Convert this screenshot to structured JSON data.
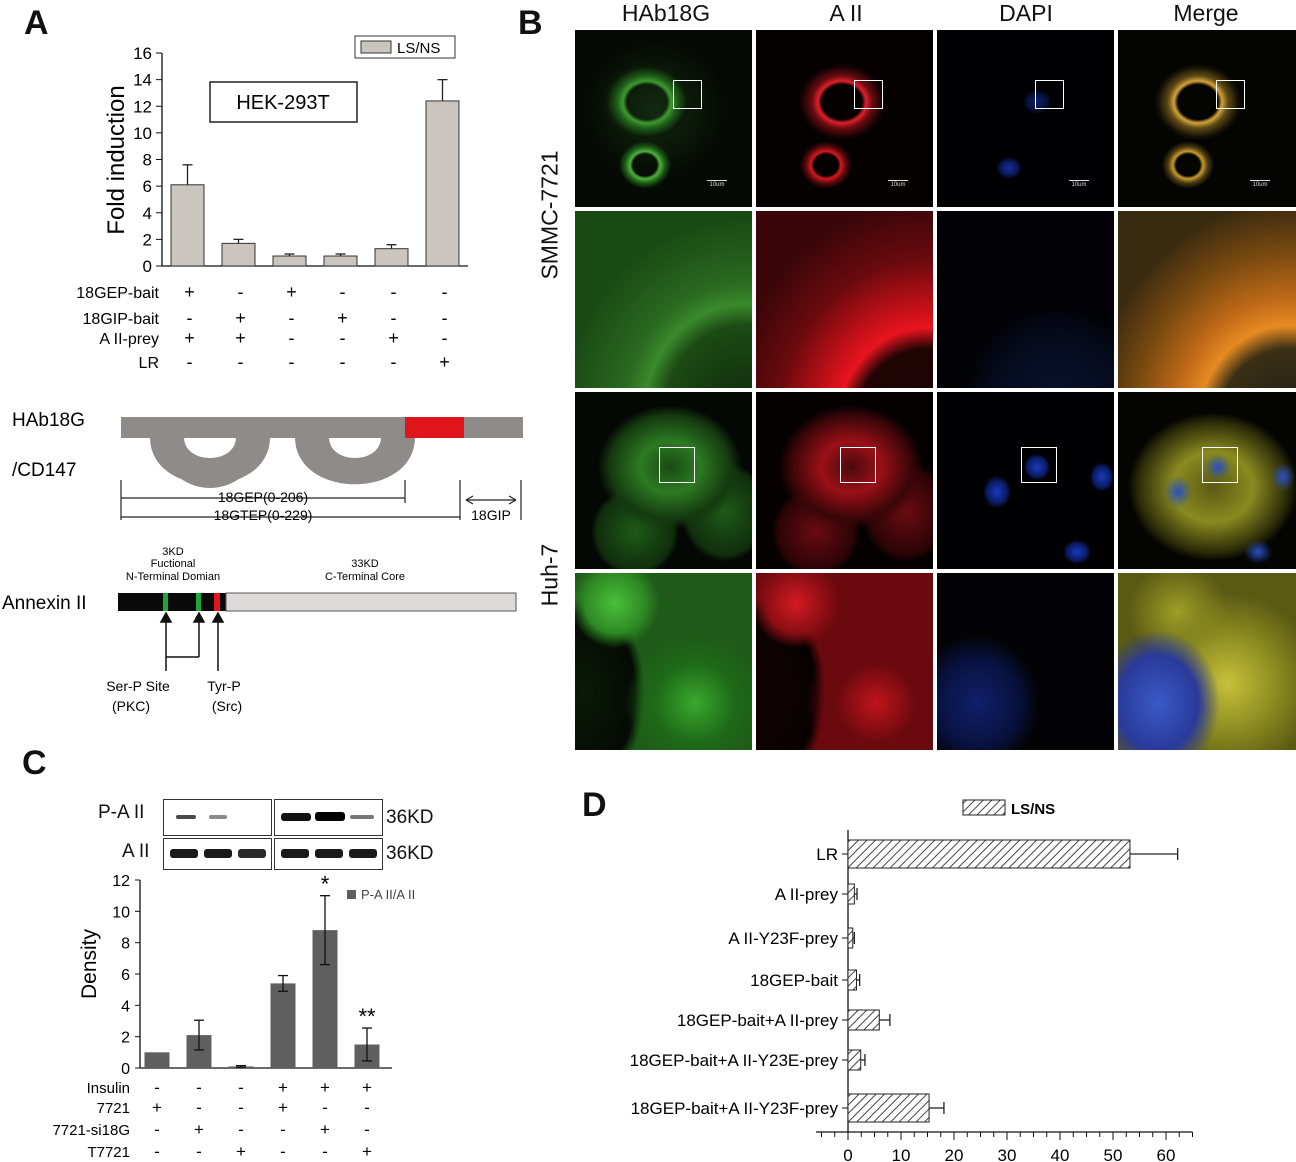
{
  "figure": {
    "panel_letters": {
      "a": "A",
      "b": "B",
      "c": "C",
      "d": "D"
    }
  },
  "chart_data": [
    {
      "type": "bar",
      "panel": "A",
      "inset_label": "HEK-293T",
      "ylabel": "Fold induction",
      "ylim": [
        0,
        16
      ],
      "yticks": [
        "0",
        "2",
        "4",
        "6",
        "8",
        "10",
        "12",
        "14",
        "16"
      ],
      "legend": "LS/NS",
      "legend_placement": "top-right",
      "bar_color": "#cac5bf",
      "values": [
        6.1,
        1.7,
        0.75,
        0.75,
        1.3,
        12.4
      ],
      "errors": [
        1.5,
        0.3,
        0.15,
        0.15,
        0.3,
        1.6
      ],
      "conditions": [
        {
          "label": "18GEP-bait",
          "marks": [
            "+",
            "-",
            "+",
            "-",
            "-",
            "-"
          ]
        },
        {
          "label": "18GIP-bait",
          "marks": [
            "-",
            "+",
            "-",
            "+",
            "-",
            "-"
          ]
        },
        {
          "label": "A II-prey",
          "marks": [
            "+",
            "+",
            "-",
            "-",
            "+",
            "-"
          ]
        },
        {
          "label": "LR",
          "marks": [
            "-",
            "-",
            "-",
            "-",
            "-",
            "+"
          ]
        }
      ]
    },
    {
      "type": "bar",
      "panel": "C",
      "ylabel": "Density",
      "ylim": [
        0,
        12
      ],
      "yticks": [
        "0",
        "2",
        "4",
        "6",
        "8",
        "10",
        "12"
      ],
      "legend": "P-A II/A II",
      "legend_placement": "top-right",
      "bar_color": "#5f5f5f",
      "values": [
        1.0,
        2.1,
        0.1,
        5.4,
        8.8,
        1.5
      ],
      "errors": [
        0,
        0.95,
        0.05,
        0.5,
        2.2,
        1.05
      ],
      "significance": [
        "",
        "",
        "",
        "",
        "*",
        "**"
      ],
      "conditions": [
        {
          "label": "Insulin",
          "marks": [
            "-",
            "-",
            "-",
            "+",
            "+",
            "+"
          ]
        },
        {
          "label": "7721",
          "marks": [
            "+",
            "-",
            "-",
            "+",
            "-",
            "-"
          ]
        },
        {
          "label": "7721-si18G",
          "marks": [
            "-",
            "+",
            "-",
            "-",
            "+",
            "-"
          ]
        },
        {
          "label": "T7721",
          "marks": [
            "-",
            "-",
            "+",
            "-",
            "-",
            "+"
          ]
        }
      ]
    },
    {
      "type": "bar",
      "panel": "D",
      "orientation": "horizontal",
      "legend": "LS/NS",
      "legend_placement": "top",
      "xlim": [
        0,
        65
      ],
      "xticks": [
        "0",
        "10",
        "20",
        "30",
        "40",
        "50",
        "60"
      ],
      "categories": [
        "LR",
        "A II-prey",
        "A II-Y23F-prey",
        "18GEP-bait",
        "18GEP-bait+A II-prey",
        "18GEP-bait+A II-Y23E-prey",
        "18GEP-bait+A II-Y23F-prey"
      ],
      "values": [
        53.2,
        1.2,
        0.9,
        1.6,
        5.9,
        2.4,
        15.3
      ],
      "errors": [
        9.0,
        0.5,
        0.3,
        0.6,
        2.0,
        0.8,
        2.8
      ]
    }
  ],
  "domain_diagram": {
    "protein1_label_line1": "HAb18G",
    "protein1_label_line2": "/CD147",
    "range1": "18GEP(0-206)",
    "range2": "18GTEP(0-229)",
    "range3": "18GIP",
    "protein2_label": "Annexin II",
    "nterm_line1": "3KD",
    "nterm_line2": "Fuctional",
    "nterm_line3": "N-Terminal Domian",
    "cterm_line1": "33KD",
    "cterm_line2": "C-Terminal Core",
    "site1_line1": "Ser-P Site",
    "site1_line2": "(PKC)",
    "site2_line1": "Tyr-P",
    "site2_line2": "(Src)"
  },
  "blot": {
    "row1_label": "P-A II",
    "row1_size": "36KD",
    "row2_label": "A II",
    "row2_size": "36KD"
  },
  "microscopy": {
    "columns": [
      "HAb18G",
      "A II",
      "DAPI",
      "Merge"
    ],
    "rows": [
      "SMMC-7721",
      "Huh-7"
    ],
    "scale_bar": "10um"
  }
}
